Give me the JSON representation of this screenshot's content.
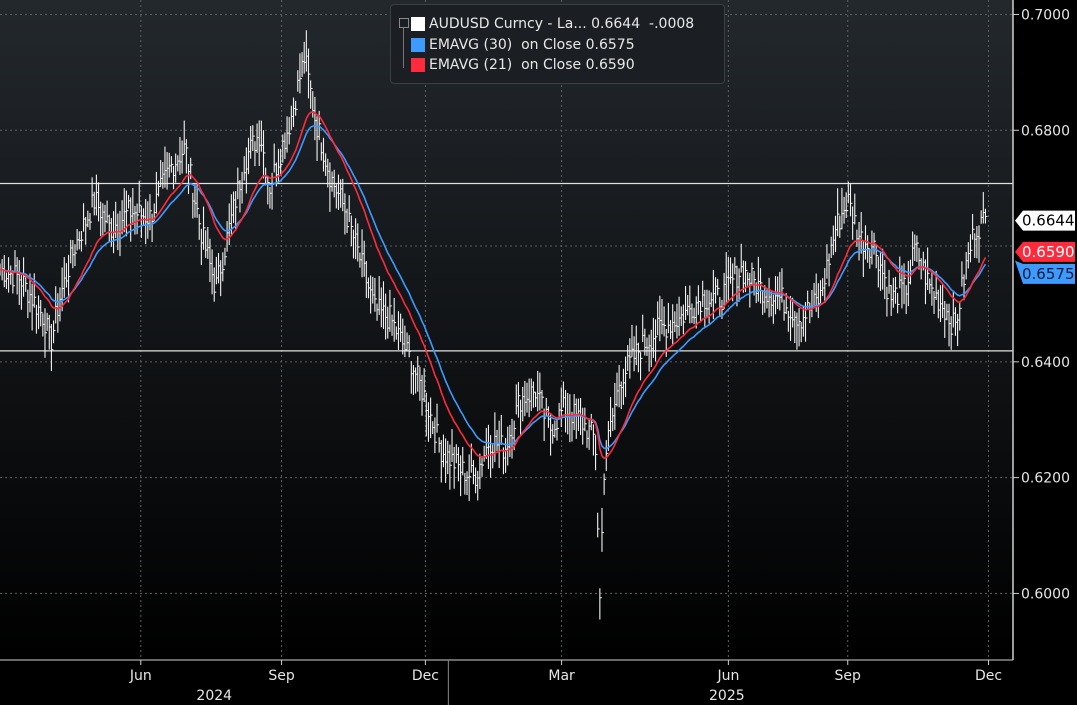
{
  "chart_data": {
    "type": "line",
    "subtype": "high-low bars with moving averages",
    "title": "",
    "x_unit": "days since 2024-03-01",
    "xlim": [
      0,
      662
    ],
    "ylim": [
      0.5885,
      0.7025
    ],
    "y_ticks": [
      "0.7000",
      "0.6800",
      "0.6400",
      "0.6200",
      "0.6000"
    ],
    "y_tick_values": [
      0.7,
      0.68,
      0.64,
      0.62,
      0.6
    ],
    "y_gridlines": [
      0.7,
      0.68,
      0.66,
      0.64,
      0.62,
      0.6
    ],
    "x_ticks": [
      {
        "label": "Jun",
        "x": 92
      },
      {
        "label": "Sep",
        "x": 184
      },
      {
        "label": "Dec",
        "x": 278
      },
      {
        "label": "Mar",
        "x": 367
      },
      {
        "label": "Jun",
        "x": 476
      },
      {
        "label": "Sep",
        "x": 554
      },
      {
        "label": "Dec",
        "x": 646
      }
    ],
    "years": [
      {
        "label": "2024",
        "x": 140
      },
      {
        "label": "2025",
        "x": 475
      }
    ],
    "year_divider_x": 293,
    "horizontal_lines": [
      0.6708,
      0.6419
    ],
    "series": [
      {
        "name": "AUDUSD Curncy - La...",
        "color": "#ffffff",
        "last": "0.6644",
        "change": "-.0008",
        "points": [
          [
            0,
            0.656
          ],
          [
            13,
            0.6545
          ],
          [
            29,
            0.6475
          ],
          [
            33,
            0.643
          ],
          [
            39,
            0.651
          ],
          [
            49,
            0.66
          ],
          [
            62,
            0.668
          ],
          [
            72,
            0.663
          ],
          [
            85,
            0.666
          ],
          [
            98,
            0.665
          ],
          [
            111,
            0.6735
          ],
          [
            121,
            0.677
          ],
          [
            131,
            0.663
          ],
          [
            141,
            0.6527
          ],
          [
            147,
            0.6597
          ],
          [
            160,
            0.675
          ],
          [
            170,
            0.6797
          ],
          [
            176,
            0.67
          ],
          [
            190,
            0.682
          ],
          [
            199,
            0.6927
          ],
          [
            206,
            0.682
          ],
          [
            216,
            0.672
          ],
          [
            225,
            0.6666
          ],
          [
            235,
            0.658
          ],
          [
            245,
            0.649
          ],
          [
            255,
            0.6475
          ],
          [
            268,
            0.6405
          ],
          [
            278,
            0.6336
          ],
          [
            288,
            0.625
          ],
          [
            301,
            0.6214
          ],
          [
            310,
            0.62
          ],
          [
            320,
            0.6266
          ],
          [
            330,
            0.625
          ],
          [
            340,
            0.6336
          ],
          [
            350,
            0.635
          ],
          [
            359,
            0.6283
          ],
          [
            369,
            0.632
          ],
          [
            379,
            0.63
          ],
          [
            389,
            0.6266
          ],
          [
            392,
            0.599
          ],
          [
            395,
            0.623
          ],
          [
            405,
            0.637
          ],
          [
            418,
            0.6423
          ],
          [
            431,
            0.6457
          ],
          [
            444,
            0.6475
          ],
          [
            458,
            0.651
          ],
          [
            471,
            0.651
          ],
          [
            484,
            0.656
          ],
          [
            497,
            0.6527
          ],
          [
            510,
            0.651
          ],
          [
            523,
            0.6475
          ],
          [
            536,
            0.651
          ],
          [
            546,
            0.663
          ],
          [
            554,
            0.668
          ],
          [
            562,
            0.6614
          ],
          [
            572,
            0.6597
          ],
          [
            582,
            0.651
          ],
          [
            592,
            0.6527
          ],
          [
            598,
            0.6597
          ],
          [
            608,
            0.6527
          ],
          [
            618,
            0.649
          ],
          [
            624,
            0.6457
          ],
          [
            631,
            0.656
          ],
          [
            637,
            0.663
          ],
          [
            644,
            0.6644
          ]
        ]
      },
      {
        "name": "EMAVG (30)  on Close",
        "color": "#3d9bff",
        "period": 30,
        "last": "0.6575"
      },
      {
        "name": "EMAVG (21)  on Close",
        "color": "#ff2a3c",
        "period": 21,
        "last": "0.6590"
      }
    ],
    "legend_position": "top-center"
  }
}
